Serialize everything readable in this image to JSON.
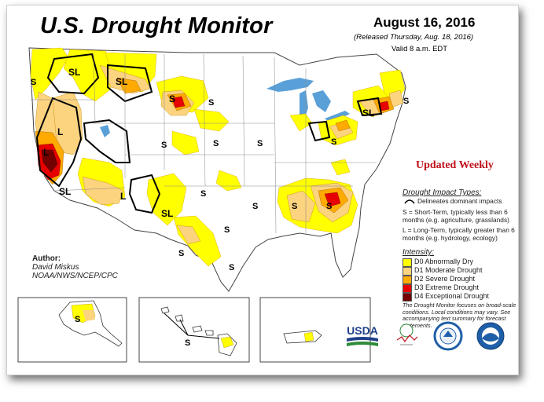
{
  "title": "U.S. Drought Monitor",
  "date": "August 16, 2016",
  "released": "(Released Thursday, Aug. 18, 2016)",
  "valid": "Valid 8 a.m. EDT",
  "updated": "Updated Weekly",
  "impact": {
    "title": "Drought Impact Types:",
    "delineates": "Delineates dominant impacts",
    "short_term": "S = Short-Term, typically less than 6 months (e.g. agriculture, grasslands)",
    "long_term": "L = Long-Term, typically greater than 6 months (e.g. hydrology, ecology)"
  },
  "intensity": {
    "title": "Intensity:",
    "levels": [
      {
        "label": "D0 Abnormally Dry",
        "color": "#ffff00"
      },
      {
        "label": "D1 Moderate Drought",
        "color": "#fcd37f"
      },
      {
        "label": "D2 Severe Drought",
        "color": "#ffaa00"
      },
      {
        "label": "D3 Extreme Drought",
        "color": "#e60000"
      },
      {
        "label": "D4 Exceptional Drought",
        "color": "#730000"
      }
    ]
  },
  "author": {
    "label": "Author:",
    "name": "David Miskus",
    "org": "NOAA/NWS/NCEP/CPC"
  },
  "note": "The Drought Monitor focuses on broad-scale conditions. Local conditions may vary. See accompanying text summary for forecast statements.",
  "impact_letters": {
    "s": "S",
    "sl": "SL",
    "l": "L"
  },
  "logos": {
    "usda": "USDA"
  }
}
